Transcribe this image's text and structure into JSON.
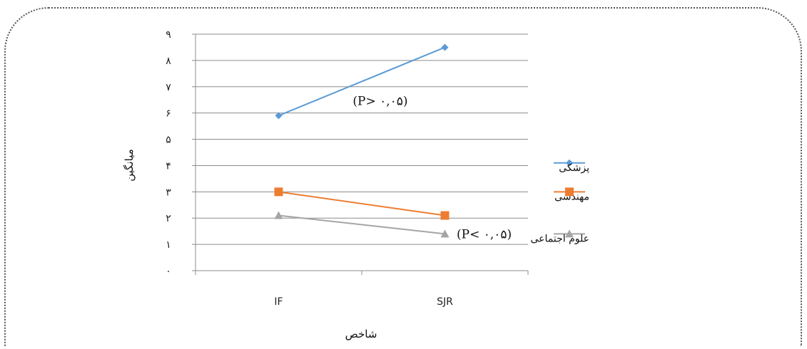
{
  "chart_data": {
    "type": "line",
    "categories": [
      "IF",
      "SJR"
    ],
    "series": [
      {
        "name": "پزشکی",
        "values": [
          5.9,
          8.5
        ],
        "color": "#5b9bd5",
        "marker": "diamond"
      },
      {
        "name": "مهندسی",
        "values": [
          3.0,
          2.1
        ],
        "color": "#ed7d31",
        "marker": "square"
      },
      {
        "name": "علوم اجتماعی",
        "values": [
          2.1,
          1.4
        ],
        "color": "#a5a5a5",
        "marker": "triangle"
      }
    ],
    "ylabel": "میانگین",
    "xlabel": "شاخص",
    "ylim": [
      0,
      9
    ],
    "yticks": [
      "۰",
      "۱",
      "۲",
      "۳",
      "۴",
      "۵",
      "۶",
      "۷",
      "۸",
      "۹"
    ],
    "grid": true,
    "legend_position": "right",
    "annotations": [
      {
        "text": "(P> ۰,۰۵)",
        "anchor_series": 0
      },
      {
        "text": "(P< ۰,۰۵)",
        "anchor_series": 2
      }
    ]
  }
}
